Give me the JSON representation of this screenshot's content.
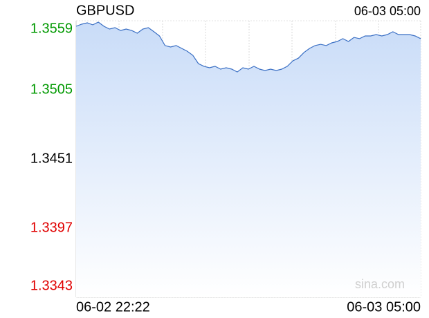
{
  "chart_data": {
    "type": "area",
    "title": "GBPUSD",
    "timestamp": "06-03 05:00",
    "watermark": "sina.com",
    "categories": [
      "06-02 22:22",
      null,
      null,
      null,
      null,
      null,
      null,
      null,
      null,
      null,
      null,
      null,
      null,
      null,
      null,
      null,
      null,
      null,
      null,
      null,
      null,
      null,
      null,
      null,
      null,
      null,
      null,
      null,
      null,
      null,
      null,
      null,
      null,
      null,
      null,
      null,
      null,
      null,
      null,
      null,
      null,
      null,
      null,
      null,
      null,
      null,
      null,
      null,
      null,
      null,
      null,
      null,
      null,
      null,
      null,
      null,
      null,
      null,
      null,
      null,
      null,
      null,
      "06-03 05:00"
    ],
    "values": [
      1.35547,
      1.35563,
      1.35574,
      1.35558,
      1.35579,
      1.35547,
      1.35525,
      1.35536,
      1.35514,
      1.35525,
      1.35514,
      1.35493,
      1.35525,
      1.35536,
      1.35504,
      1.35471,
      1.35396,
      1.35385,
      1.35396,
      1.35374,
      1.35352,
      1.3532,
      1.35255,
      1.35234,
      1.35223,
      1.35234,
      1.35212,
      1.35223,
      1.35212,
      1.3519,
      1.35223,
      1.35212,
      1.35234,
      1.35212,
      1.35201,
      1.35212,
      1.35201,
      1.35212,
      1.35234,
      1.35277,
      1.35298,
      1.35342,
      1.35374,
      1.35396,
      1.35406,
      1.35396,
      1.35417,
      1.35428,
      1.3545,
      1.35428,
      1.3546,
      1.3545,
      1.35471,
      1.35471,
      1.35482,
      1.35471,
      1.35482,
      1.35504,
      1.35482,
      1.35482,
      1.35482,
      1.35471,
      1.3545
    ],
    "color": "#3a6fc4",
    "reference_line": 1.3451,
    "up_color": "#009900",
    "down_color": "#e00000",
    "ylim": [
      1.3343,
      1.3559
    ],
    "yticks": [
      1.3343,
      1.3397,
      1.3451,
      1.3505,
      1.3559
    ],
    "grid": true
  }
}
